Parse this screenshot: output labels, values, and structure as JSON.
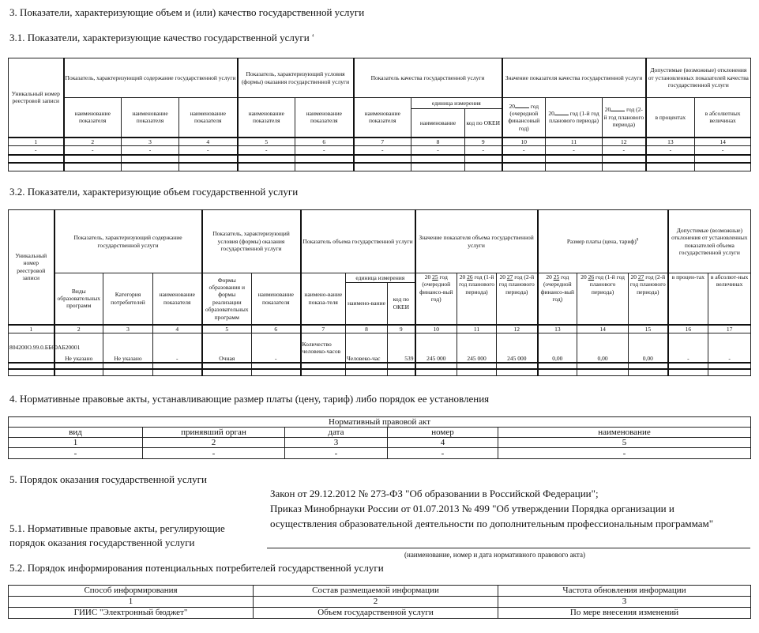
{
  "section3": {
    "title": "3. Показатели, характеризующие объем и (или) качество государственной услуги"
  },
  "s31": {
    "title": "3.1. Показатели, характеризующие качество государственной услуги",
    "title_sup": "4",
    "h_unique": "Уникальный номер реестровой записи",
    "h_content": "Показатель, характеризующий содержание государственной услуги",
    "h_conditions": "Показатель, характеризующий условия (формы) оказания государственной услуги",
    "h_quality": "Показатель качества государственной услуги",
    "h_value": "Значение показателя качества государственной услуги",
    "h_deviation": "Допустимые (возможные) отклонения от установленных показателей качества государственной услуги",
    "name_ind": "наименование показателя",
    "unit": "единица измерения",
    "unit_name": "наименование",
    "okei": "код по ОКЕИ",
    "y1": "год (очередной финансовый год)",
    "y2": "год (1-й год планового периода)",
    "y3": "год (2-й год планового периода)",
    "yr_prefix": "20",
    "pct": "в процентах",
    "abs": "в абсолютных величинах",
    "nums": [
      "1",
      "2",
      "3",
      "4",
      "5",
      "6",
      "7",
      "8",
      "9",
      "10",
      "11",
      "12",
      "13",
      "14"
    ],
    "row": [
      "-",
      "-",
      "-",
      "-",
      "-",
      "-",
      "-",
      "-",
      "-",
      "-",
      "-",
      "-",
      "-",
      "-"
    ]
  },
  "s32": {
    "title": "3.2. Показатели, характеризующие объем государственной услуги",
    "h_unique": "Уникальный номер реестровой записи",
    "h_content": "Показатель, характеризующий содержание государственной услуги",
    "h_conditions": "Показатель, характеризующий условия (формы) оказания государственной услуги",
    "h_volume": "Показатель объема государственной услуги",
    "h_value": "Значение показателя объема государственной услуги",
    "h_fee": "Размер платы (цена, тариф)",
    "h_deviation": "Допустимые (возможные) отклонения от установленных показателей объема государственной услуги",
    "c2": "Виды образовательных программ",
    "c3": "Категория потребителей",
    "c4": "наименование показателя",
    "c5": "Формы образования и формы реализации образовательных программ",
    "c6": "наименование показателя",
    "c7": "наимено-вание показа-теля",
    "unit": "единица измерения",
    "c8": "наимено-вание",
    "c9": "код по ОКЕИ",
    "y_prefix": "20",
    "years": [
      "25",
      "26",
      "27",
      "25",
      "26",
      "27"
    ],
    "y1": "год (очередной финансо-вый год)",
    "y2": "год (1-й год планового периода)",
    "y3": "год (2-й год планового периода)",
    "pct": "в процен-тах",
    "abs": "в абсолют-ных величинах",
    "nums": [
      "1",
      "2",
      "3",
      "4",
      "5",
      "6",
      "7",
      "8",
      "9",
      "10",
      "11",
      "12",
      "13",
      "14",
      "15",
      "16",
      "17"
    ],
    "row": [
      "804200О.99.0.ББ60АБ20001",
      "Не указано",
      "Не указано",
      "-",
      "Очная",
      "-",
      "Количество человеко-часов",
      "Человеко-час",
      "539",
      "245 000",
      "245 000",
      "245 000",
      "0,00",
      "0,00",
      "0,00",
      "-",
      "-"
    ]
  },
  "s4": {
    "title": "4. Нормативные правовые акты, устанавливающие размер платы (цену, тариф) либо порядок ее установления",
    "act": "Нормативный правовой акт",
    "cols": [
      "вид",
      "принявший орган",
      "дата",
      "номер",
      "наименование"
    ],
    "nums": [
      "1",
      "2",
      "3",
      "4",
      "5"
    ],
    "row": [
      "-",
      "-",
      "-",
      "-",
      "-"
    ]
  },
  "s5": {
    "title": "5. Порядок оказания государственной услуги",
    "s51_label1": "5.1. Нормативные правовые акты, регулирующие",
    "s51_label2": "порядок оказания государственной услуги",
    "acts": [
      "Закон от 29.12.2012 № 273-ФЗ \"Об образовании в Российской Федерации\";",
      "Приказ Минобрнауки России от 01.07.2013 № 499 \"Об утверждении Порядка организации и",
      "осуществления образовательной деятельности по дополнительным профессиональным программам\""
    ],
    "caption": "(наименование, номер и дата нормативного правового акта)",
    "s52_title": "5.2. Порядок информирования потенциальных потребителей государственной услуги",
    "cols": [
      "Способ информирования",
      "Состав размещаемой информации",
      "Частота обновления информации"
    ],
    "nums": [
      "1",
      "2",
      "3"
    ],
    "row": [
      "ГИИС \"Электронный бюджет\"",
      "Объем государственной услуги",
      "По мере внесения изменений"
    ]
  }
}
